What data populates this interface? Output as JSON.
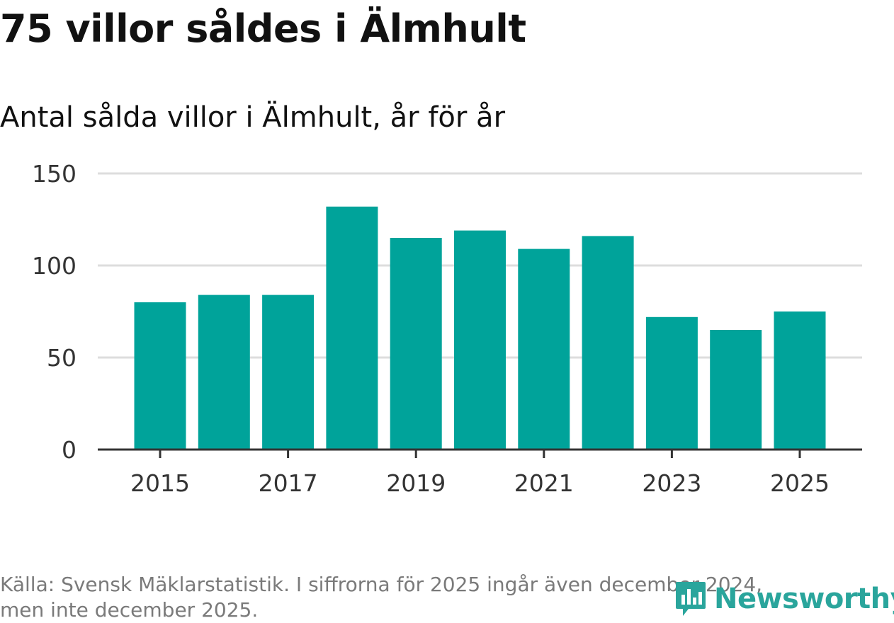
{
  "header": {
    "title": "75 villor såldes i Älmhult",
    "subtitle": "Antal sålda villor i Älmhult, år för år"
  },
  "footer": {
    "source_line1": "Källa: Svensk Mäklarstatistik. I siffrorna för 2025 ingår även december 2024,",
    "source_line2": "men inte december 2025.",
    "logo_text": "Newsworthy"
  },
  "colors": {
    "bar": "#00a39a",
    "grid": "#dddddd",
    "axis": "#333333",
    "logo": "#2aa59c"
  },
  "chart_data": {
    "type": "bar",
    "title": "Antal sålda villor i Älmhult, år för år",
    "xlabel": "",
    "ylabel": "",
    "categories": [
      "2015",
      "2016",
      "2017",
      "2018",
      "2019",
      "2020",
      "2021",
      "2022",
      "2023",
      "2024",
      "2025"
    ],
    "values": [
      80,
      84,
      84,
      132,
      115,
      119,
      109,
      116,
      72,
      65,
      75
    ],
    "ylim": [
      0,
      150
    ],
    "yticks": [
      "0",
      "50",
      "100",
      "150"
    ],
    "xticks": [
      "2015",
      "2017",
      "2019",
      "2021",
      "2023",
      "2025"
    ],
    "grid": true,
    "legend": "none"
  }
}
